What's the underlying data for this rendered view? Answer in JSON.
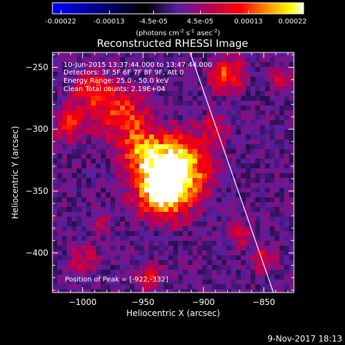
{
  "colorbar": {
    "ticks": [
      "-0.00022",
      "-0.00013",
      "-4.5e-05",
      "4.5e-05",
      "0.00013",
      "0.00022"
    ],
    "units_main": "(photons cm",
    "units_sup1": "-2",
    "units_mid": " s",
    "units_sup2": "-1",
    "units_end": " asec",
    "units_sup3": "-2",
    "units_close": ")"
  },
  "annotations": {
    "time_range": "10-Jun-2015 13:37:44.000 to 13:47:44.000",
    "detectors": "Detectors: 3F 5F 6F 7F 8F 9F, Att 0",
    "energy": "Energy Range: 25.0 - 50.0 keV",
    "clean": "Clean    Total counts: 2.19E+04",
    "peak": "Position of Peak = [-922,-332]"
  },
  "footer": {
    "timestamp": "9-Nov-2017 18:13"
  },
  "chart_data": {
    "type": "heatmap",
    "title": "Reconstructed RHESSI Image",
    "xlabel": "Heliocentric X (arcsec)",
    "ylabel": "Heliocentric Y (arcsec)",
    "xlim": [
      -1025,
      -825
    ],
    "ylim": [
      -432,
      -238
    ],
    "x_ticks": [
      -1000,
      -950,
      -900,
      -850
    ],
    "y_ticks": [
      -250,
      -300,
      -350,
      -400
    ],
    "x_tick_labels": [
      "−1000",
      "−950",
      "−900",
      "−850"
    ],
    "y_tick_labels": [
      "−250",
      "−300",
      "−350",
      "−400"
    ],
    "limb_line": {
      "x": [
        -911,
        -842
      ],
      "y": [
        -238,
        -432
      ],
      "color": "#ffffff"
    },
    "peak_position": [
      -922,
      -332
    ],
    "sources": [
      {
        "x": -922,
        "y": -332,
        "amplitude": 1.0,
        "sigma": 18
      },
      {
        "x": -935,
        "y": -350,
        "amplitude": 0.8,
        "sigma": 15
      },
      {
        "x": -950,
        "y": -318,
        "amplitude": 0.6,
        "sigma": 12
      },
      {
        "x": -965,
        "y": -290,
        "amplitude": 0.55,
        "sigma": 14
      },
      {
        "x": -990,
        "y": -270,
        "amplitude": 0.5,
        "sigma": 12
      },
      {
        "x": -1010,
        "y": -295,
        "amplitude": 0.45,
        "sigma": 10
      },
      {
        "x": -880,
        "y": -255,
        "amplitude": 0.55,
        "sigma": 10
      },
      {
        "x": -890,
        "y": -300,
        "amplitude": 0.35,
        "sigma": 8
      },
      {
        "x": -1000,
        "y": -405,
        "amplitude": 0.35,
        "sigma": 8
      },
      {
        "x": -870,
        "y": -385,
        "amplitude": 0.4,
        "sigma": 7
      },
      {
        "x": -850,
        "y": -405,
        "amplitude": 0.45,
        "sigma": 7
      },
      {
        "x": -945,
        "y": -420,
        "amplitude": 0.4,
        "sigma": 8
      },
      {
        "x": -985,
        "y": -378,
        "amplitude": 0.3,
        "sigma": 6
      },
      {
        "x": -835,
        "y": -260,
        "amplitude": 0.35,
        "sigma": 7
      }
    ],
    "colormap": [
      "#0000ff",
      "#000000",
      "#5a1ea0",
      "#b4005a",
      "#ff0000",
      "#ff9600",
      "#ffff00",
      "#ffffff"
    ],
    "colormap_stops": [
      0.0,
      0.37,
      0.5,
      0.62,
      0.75,
      0.86,
      0.95,
      1.0
    ]
  }
}
